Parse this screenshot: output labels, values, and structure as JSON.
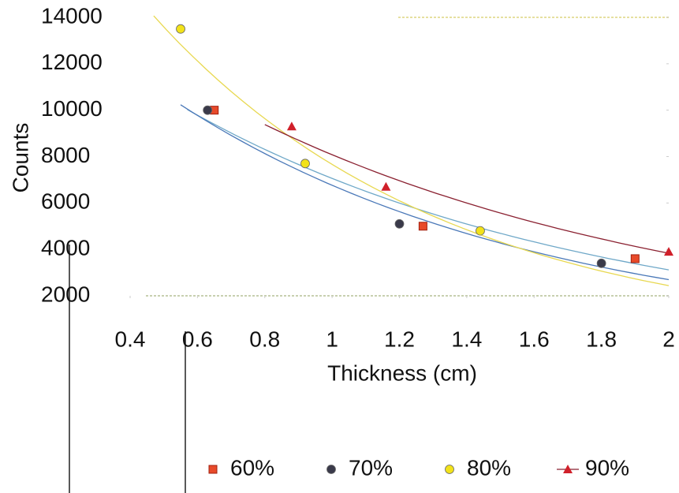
{
  "chart_data": {
    "type": "scatter",
    "x_label": "Thickness (cm)",
    "y_label": "Counts",
    "xlim": [
      0.4,
      2
    ],
    "xticks": [
      0.4,
      0.6,
      0.8,
      1,
      1.2,
      1.4,
      1.6,
      1.8,
      2
    ],
    "ylim": [
      2000,
      14000
    ],
    "yticks": [
      2000,
      4000,
      6000,
      8000,
      10000,
      12000,
      14000
    ],
    "trendline": "exponential",
    "series": [
      {
        "name": "60%",
        "color": "#e84a2a",
        "trend_color": "#6fa8c8",
        "marker": "square",
        "x": [
          0.65,
          1.27,
          1.9
        ],
        "values": [
          10000,
          5000,
          3600
        ]
      },
      {
        "name": "70%",
        "color": "#3a3a4a",
        "trend_color": "#4a78b8",
        "marker": "circle",
        "x": [
          0.63,
          1.2,
          1.8
        ],
        "values": [
          10000,
          5100,
          3400
        ]
      },
      {
        "name": "80%",
        "color": "#f2e21a",
        "trend_color": "#e8d850",
        "marker": "circle",
        "x": [
          0.55,
          0.92,
          1.44
        ],
        "values": [
          13500,
          7700,
          4800
        ]
      },
      {
        "name": "90%",
        "color": "#d0202a",
        "trend_color": "#8a2030",
        "marker": "triangle",
        "x": [
          0.88,
          1.16,
          2
        ],
        "values": [
          9300,
          6700,
          3900
        ]
      }
    ]
  }
}
